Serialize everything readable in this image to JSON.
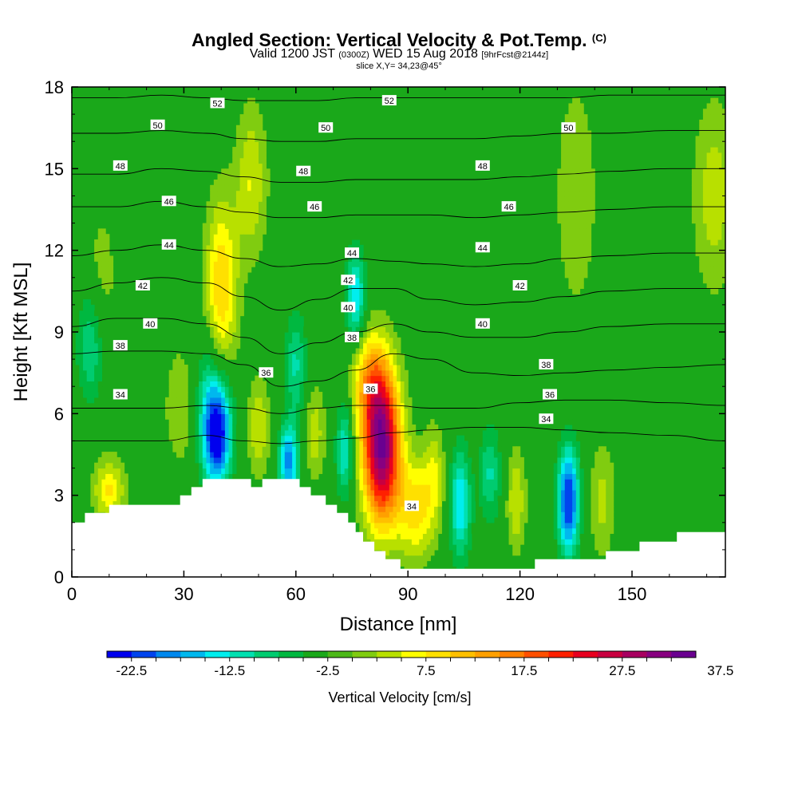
{
  "header": {
    "title": "Angled Section: Vertical Velocity & Pot.Temp.",
    "title_tag": "(C)",
    "valid_prefix": "Valid 1200 JST",
    "valid_utc": "(0300Z)",
    "valid_date": "WED 15 Aug 2018",
    "forecast_tag": "[9hrFcst@2144z]",
    "slice": "slice X,Y= 34,23@45°"
  },
  "chart_data": {
    "type": "heatmap",
    "xlabel": "Distance [nm]",
    "ylabel": "Height [Kft MSL]",
    "xlim": [
      0,
      175
    ],
    "ylim": [
      0,
      18
    ],
    "xticks": [
      0,
      30,
      60,
      90,
      120,
      150
    ],
    "yticks": [
      0,
      3,
      6,
      9,
      12,
      15,
      18
    ],
    "background_color": "#1aa81a",
    "colorbar": {
      "title": "Vertical Velocity [cm/s]",
      "tick_labels": [
        "-22.5",
        "-12.5",
        "-2.5",
        "7.5",
        "17.5",
        "27.5",
        "37.5"
      ],
      "colors": [
        "#0000ee",
        "#0044ee",
        "#0088ee",
        "#00b8ee",
        "#00eeee",
        "#00e0b0",
        "#00cc70",
        "#00b840",
        "#1aa81a",
        "#4cb818",
        "#80cc10",
        "#b8e000",
        "#ffff00",
        "#ffe000",
        "#ffc000",
        "#ffa000",
        "#ff8000",
        "#ff5000",
        "#ff2000",
        "#e80020",
        "#c80040",
        "#a80060",
        "#880080",
        "#6a0090"
      ]
    },
    "terrain": [
      [
        0,
        2
      ],
      [
        3.5,
        2
      ],
      [
        3.5,
        2.35
      ],
      [
        10,
        2.35
      ],
      [
        10,
        2.65
      ],
      [
        29,
        2.65
      ],
      [
        29,
        3
      ],
      [
        32,
        3
      ],
      [
        32,
        3.3
      ],
      [
        35,
        3.3
      ],
      [
        35,
        3.6
      ],
      [
        48,
        3.6
      ],
      [
        48,
        3.3
      ],
      [
        51,
        3.3
      ],
      [
        51,
        3.6
      ],
      [
        61,
        3.6
      ],
      [
        61,
        3.3
      ],
      [
        64,
        3.3
      ],
      [
        64,
        3
      ],
      [
        68,
        3
      ],
      [
        68,
        2.65
      ],
      [
        71,
        2.65
      ],
      [
        71,
        2.35
      ],
      [
        74,
        2.35
      ],
      [
        74,
        2
      ],
      [
        76,
        2
      ],
      [
        76,
        1.65
      ],
      [
        78,
        1.65
      ],
      [
        78,
        1.3
      ],
      [
        81,
        1.3
      ],
      [
        81,
        0.95
      ],
      [
        84,
        0.95
      ],
      [
        84,
        0.65
      ],
      [
        88,
        0.65
      ],
      [
        88,
        0.3
      ],
      [
        124,
        0.3
      ],
      [
        124,
        0.65
      ],
      [
        143,
        0.65
      ],
      [
        143,
        0.95
      ],
      [
        152,
        0.95
      ],
      [
        152,
        1.3
      ],
      [
        162,
        1.3
      ],
      [
        162,
        1.65
      ],
      [
        175,
        1.65
      ],
      [
        175,
        0
      ],
      [
        0,
        0
      ]
    ],
    "velocity_features": [
      {
        "x": 10,
        "y": 3.2,
        "sx": 3,
        "sy": 0.8,
        "value": 11
      },
      {
        "x": 40,
        "y": 10.5,
        "sx": 3,
        "sy": 2.3,
        "value": 14
      },
      {
        "x": 48,
        "y": 14.5,
        "sx": 3,
        "sy": 2,
        "value": 8
      },
      {
        "x": 30,
        "y": 6.3,
        "sx": 3.5,
        "sy": 1.6,
        "value": 6
      },
      {
        "x": 39,
        "y": 5.2,
        "sx": 2.6,
        "sy": 1.3,
        "value": -22
      },
      {
        "x": 37,
        "y": 6.5,
        "sx": 3.5,
        "sy": 1.8,
        "value": -10
      },
      {
        "x": 58,
        "y": 4.2,
        "sx": 1.8,
        "sy": 1,
        "value": -18
      },
      {
        "x": 60,
        "y": 7.8,
        "sx": 2,
        "sy": 1.4,
        "value": -9
      },
      {
        "x": 50,
        "y": 5.5,
        "sx": 2,
        "sy": 1.3,
        "value": 8
      },
      {
        "x": 65,
        "y": 5.3,
        "sx": 2,
        "sy": 1.2,
        "value": 7
      },
      {
        "x": 73,
        "y": 4.7,
        "sx": 1.6,
        "sy": 1.2,
        "value": -12
      },
      {
        "x": 76,
        "y": 10.3,
        "sx": 1.8,
        "sy": 1.2,
        "value": -14
      },
      {
        "x": 83,
        "y": 4.7,
        "sx": 3.5,
        "sy": 1.9,
        "value": 38
      },
      {
        "x": 80,
        "y": 7.2,
        "sx": 3.5,
        "sy": 1.3,
        "value": 14
      },
      {
        "x": 92,
        "y": 2.5,
        "sx": 3.5,
        "sy": 1.3,
        "value": 12
      },
      {
        "x": 104,
        "y": 2.7,
        "sx": 2,
        "sy": 1.4,
        "value": -14
      },
      {
        "x": 112,
        "y": 3.8,
        "sx": 2,
        "sy": 1.2,
        "value": -9
      },
      {
        "x": 97,
        "y": 3.8,
        "sx": 2,
        "sy": 1.3,
        "value": 7
      },
      {
        "x": 119,
        "y": 2.8,
        "sx": 1.8,
        "sy": 1.3,
        "value": 8
      },
      {
        "x": 133,
        "y": 2.8,
        "sx": 2,
        "sy": 1.4,
        "value": -23
      },
      {
        "x": 142,
        "y": 2.8,
        "sx": 2.5,
        "sy": 1.5,
        "value": 6
      },
      {
        "x": 172,
        "y": 14,
        "sx": 4,
        "sy": 2.5,
        "value": 7
      },
      {
        "x": 5,
        "y": 8.5,
        "sx": 2.5,
        "sy": 1.5,
        "value": -9
      },
      {
        "x": 8,
        "y": 11,
        "sx": 3,
        "sy": 2,
        "value": 4
      },
      {
        "x": 135,
        "y": 14,
        "sx": 4,
        "sy": 3,
        "value": 5
      }
    ],
    "isentropes": [
      {
        "value": 34,
        "heights": [
          5.0,
          5.0,
          5.0,
          5.2,
          5.0,
          4.9,
          5.0,
          5.1,
          5.3,
          5.4,
          5.5,
          5.5,
          5.4,
          5.3,
          5.2,
          5.0
        ]
      },
      {
        "value": 36,
        "heights": [
          6.2,
          6.2,
          6.2,
          6.3,
          6.2,
          6.0,
          6.2,
          6.3,
          6.3,
          6.2,
          6.2,
          6.4,
          6.5,
          6.5,
          6.4,
          6.3
        ]
      },
      {
        "value": 38,
        "heights": [
          8.2,
          8.3,
          8.3,
          8.2,
          7.8,
          7.0,
          7.2,
          7.6,
          8.2,
          8.0,
          7.5,
          7.4,
          7.5,
          7.6,
          7.7,
          7.8
        ]
      },
      {
        "value": 40,
        "heights": [
          9.2,
          9.5,
          9.5,
          9.3,
          8.8,
          8.2,
          8.6,
          9.0,
          9.3,
          9.0,
          8.8,
          8.8,
          9.0,
          9.2,
          9.3,
          9.3
        ]
      },
      {
        "value": 42,
        "heights": [
          10.5,
          10.8,
          11.0,
          10.8,
          10.3,
          9.8,
          10.2,
          10.6,
          10.6,
          10.2,
          10.0,
          10.1,
          10.3,
          10.5,
          10.6,
          10.6
        ]
      },
      {
        "value": 44,
        "heights": [
          11.8,
          12.0,
          12.2,
          12.0,
          11.7,
          11.4,
          11.5,
          11.7,
          11.6,
          11.5,
          11.4,
          11.5,
          11.7,
          11.8,
          11.9,
          11.9
        ]
      },
      {
        "value": 46,
        "heights": [
          13.6,
          13.6,
          13.8,
          13.6,
          13.4,
          13.2,
          13.2,
          13.3,
          13.3,
          13.3,
          13.2,
          13.3,
          13.4,
          13.5,
          13.6,
          13.6
        ]
      },
      {
        "value": 48,
        "heights": [
          14.8,
          14.8,
          15.0,
          14.9,
          14.7,
          14.5,
          14.5,
          14.6,
          14.6,
          14.6,
          14.6,
          14.7,
          14.8,
          14.9,
          15.0,
          15.0
        ]
      },
      {
        "value": 50,
        "heights": [
          16.3,
          16.3,
          16.4,
          16.3,
          16.1,
          16.0,
          16.0,
          16.1,
          16.1,
          16.1,
          16.1,
          16.2,
          16.3,
          16.3,
          16.4,
          16.4
        ]
      },
      {
        "value": 52,
        "heights": [
          17.6,
          17.6,
          17.7,
          17.6,
          17.5,
          17.5,
          17.5,
          17.6,
          17.6,
          17.6,
          17.6,
          17.6,
          17.6,
          17.7,
          17.7,
          17.7
        ]
      }
    ],
    "isentrope_x": [
      0,
      12,
      24,
      36,
      46,
      56,
      66,
      76,
      86,
      96,
      108,
      120,
      132,
      144,
      160,
      175
    ],
    "contour_labels": [
      {
        "text": "52",
        "x": 39,
        "y": 17.4
      },
      {
        "text": "52",
        "x": 85,
        "y": 17.5
      },
      {
        "text": "50",
        "x": 23,
        "y": 16.6
      },
      {
        "text": "50",
        "x": 68,
        "y": 16.5
      },
      {
        "text": "50",
        "x": 133,
        "y": 16.5
      },
      {
        "text": "48",
        "x": 13,
        "y": 15.1
      },
      {
        "text": "48",
        "x": 62,
        "y": 14.9
      },
      {
        "text": "48",
        "x": 110,
        "y": 15.1
      },
      {
        "text": "46",
        "x": 26,
        "y": 13.8
      },
      {
        "text": "46",
        "x": 65,
        "y": 13.6
      },
      {
        "text": "46",
        "x": 117,
        "y": 13.6
      },
      {
        "text": "44",
        "x": 26,
        "y": 12.2
      },
      {
        "text": "44",
        "x": 75,
        "y": 11.9
      },
      {
        "text": "44",
        "x": 110,
        "y": 12.1
      },
      {
        "text": "42",
        "x": 19,
        "y": 10.7
      },
      {
        "text": "42",
        "x": 74,
        "y": 10.9
      },
      {
        "text": "42",
        "x": 120,
        "y": 10.7
      },
      {
        "text": "40",
        "x": 21,
        "y": 9.3
      },
      {
        "text": "40",
        "x": 74,
        "y": 9.9
      },
      {
        "text": "40",
        "x": 110,
        "y": 9.3
      },
      {
        "text": "38",
        "x": 13,
        "y": 8.5
      },
      {
        "text": "38",
        "x": 75,
        "y": 8.8
      },
      {
        "text": "38",
        "x": 127,
        "y": 7.8
      },
      {
        "text": "36",
        "x": 52,
        "y": 7.5
      },
      {
        "text": "36",
        "x": 80,
        "y": 6.9
      },
      {
        "text": "36",
        "x": 128,
        "y": 6.7
      },
      {
        "text": "34",
        "x": 13,
        "y": 6.7
      },
      {
        "text": "34",
        "x": 127,
        "y": 5.8
      },
      {
        "text": "34",
        "x": 91,
        "y": 2.6
      }
    ]
  }
}
